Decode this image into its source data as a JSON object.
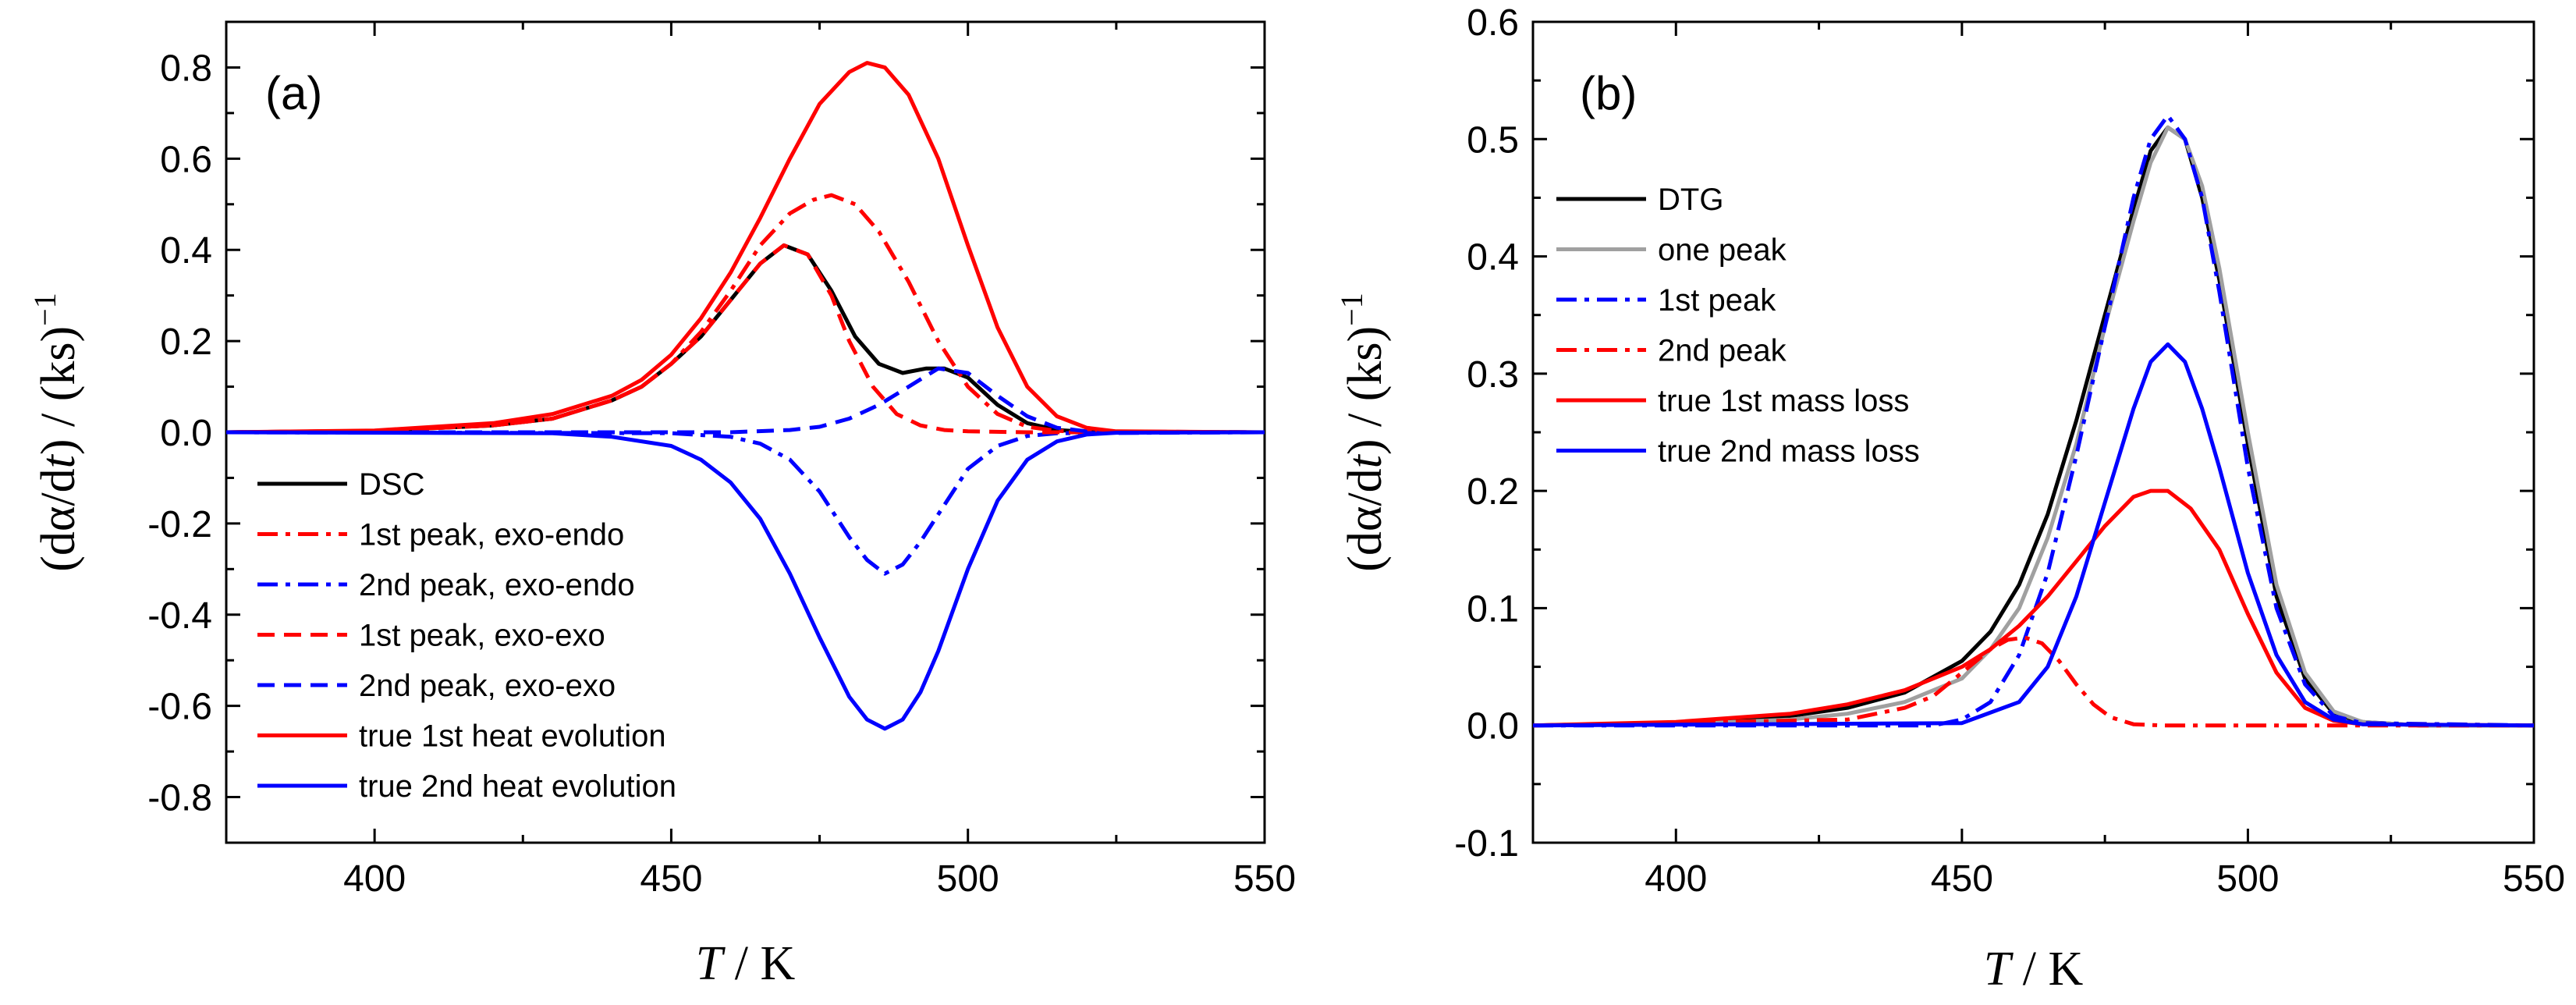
{
  "chart_data": [
    {
      "type": "line",
      "panel_label": "(a)",
      "xlabel": {
        "var": "T",
        "unit": " / K"
      },
      "ylabel": {
        "pre": "(dα/d",
        "var": "t",
        "post": ") / (ks)",
        "sup": "−1"
      },
      "xlim": [
        375,
        550
      ],
      "ylim": [
        -0.9,
        0.9
      ],
      "xticks": [
        400,
        450,
        500,
        550
      ],
      "xtick_labels": [
        "400",
        "450",
        "500",
        "550"
      ],
      "yticks": [
        -0.8,
        -0.6,
        -0.4,
        -0.2,
        0.0,
        0.2,
        0.4,
        0.6,
        0.8
      ],
      "ytick_labels": [
        "-0.8",
        "-0.6",
        "-0.4",
        "-0.2",
        "0.0",
        "0.2",
        "0.4",
        "0.6",
        "0.8"
      ],
      "legend_position": "lower-left",
      "series": [
        {
          "name": "DSC",
          "color": "#000000",
          "dash": "solid",
          "x": [
            375,
            400,
            420,
            430,
            440,
            445,
            450,
            455,
            460,
            465,
            469,
            473,
            477,
            481,
            485,
            489,
            493,
            496,
            500,
            505,
            510,
            515,
            520,
            550
          ],
          "y": [
            0,
            0.003,
            0.015,
            0.03,
            0.07,
            0.1,
            0.15,
            0.21,
            0.29,
            0.37,
            0.41,
            0.39,
            0.31,
            0.21,
            0.15,
            0.13,
            0.14,
            0.14,
            0.12,
            0.06,
            0.02,
            0.005,
            0.001,
            0
          ]
        },
        {
          "name": "1st peak, exo-endo",
          "color": "#ff0000",
          "dash": "dashdot",
          "x": [
            375,
            400,
            420,
            430,
            440,
            445,
            450,
            455,
            460,
            465,
            470,
            474,
            477,
            481,
            485,
            490,
            495,
            500,
            505,
            510,
            515,
            520,
            550
          ],
          "y": [
            0,
            0.003,
            0.015,
            0.03,
            0.07,
            0.1,
            0.15,
            0.22,
            0.31,
            0.41,
            0.48,
            0.51,
            0.52,
            0.5,
            0.44,
            0.33,
            0.2,
            0.1,
            0.04,
            0.012,
            0.003,
            0.001,
            0
          ]
        },
        {
          "name": "2nd peak, exo-endo",
          "color": "#0000ff",
          "dash": "dashdot",
          "x": [
            375,
            450,
            460,
            465,
            470,
            475,
            480,
            483,
            486,
            489,
            492,
            495,
            500,
            505,
            510,
            515,
            550
          ],
          "y": [
            0,
            -0.002,
            -0.01,
            -0.025,
            -0.06,
            -0.13,
            -0.23,
            -0.28,
            -0.31,
            -0.29,
            -0.24,
            -0.18,
            -0.08,
            -0.03,
            -0.008,
            -0.002,
            0
          ]
        },
        {
          "name": "1st peak, exo-exo",
          "color": "#ff0000",
          "dash": "dashed",
          "x": [
            375,
            400,
            420,
            430,
            440,
            445,
            450,
            455,
            460,
            465,
            469,
            473,
            477,
            480,
            484,
            488,
            492,
            496,
            500,
            510,
            550
          ],
          "y": [
            0,
            0.003,
            0.015,
            0.03,
            0.07,
            0.1,
            0.15,
            0.21,
            0.29,
            0.37,
            0.41,
            0.39,
            0.3,
            0.2,
            0.1,
            0.04,
            0.015,
            0.005,
            0.002,
            0,
            0
          ]
        },
        {
          "name": "2nd peak, exo-exo",
          "color": "#0000ff",
          "dash": "dashed",
          "x": [
            375,
            460,
            470,
            475,
            480,
            485,
            490,
            495,
            500,
            505,
            510,
            515,
            520,
            550
          ],
          "y": [
            0,
            0,
            0.005,
            0.012,
            0.03,
            0.06,
            0.1,
            0.14,
            0.13,
            0.08,
            0.035,
            0.01,
            0.002,
            0
          ]
        },
        {
          "name": "true 1st heat evolution",
          "color": "#ff0000",
          "dash": "solid",
          "x": [
            375,
            400,
            420,
            430,
            440,
            445,
            450,
            455,
            460,
            465,
            470,
            475,
            480,
            483,
            486,
            490,
            495,
            500,
            505,
            510,
            515,
            520,
            525,
            550
          ],
          "y": [
            0,
            0.004,
            0.02,
            0.04,
            0.08,
            0.115,
            0.17,
            0.25,
            0.35,
            0.47,
            0.6,
            0.72,
            0.79,
            0.81,
            0.8,
            0.74,
            0.6,
            0.41,
            0.23,
            0.1,
            0.035,
            0.01,
            0.002,
            0
          ]
        },
        {
          "name": "true 2nd heat evolution",
          "color": "#0000ff",
          "dash": "solid",
          "x": [
            375,
            430,
            440,
            450,
            455,
            460,
            465,
            470,
            475,
            480,
            483,
            486,
            489,
            492,
            495,
            500,
            505,
            510,
            515,
            520,
            525,
            550
          ],
          "y": [
            0,
            -0.002,
            -0.01,
            -0.03,
            -0.06,
            -0.11,
            -0.19,
            -0.31,
            -0.45,
            -0.58,
            -0.63,
            -0.65,
            -0.63,
            -0.57,
            -0.48,
            -0.3,
            -0.15,
            -0.06,
            -0.02,
            -0.005,
            -0.001,
            0
          ]
        }
      ]
    },
    {
      "type": "line",
      "panel_label": "(b)",
      "xlabel": {
        "var": "T",
        "unit": " / K"
      },
      "ylabel": {
        "pre": "(dα/d",
        "var": "t",
        "post": ") / (ks)",
        "sup": "−1"
      },
      "xlim": [
        375,
        550
      ],
      "ylim": [
        -0.1,
        0.6
      ],
      "xticks": [
        400,
        450,
        500,
        550
      ],
      "xtick_labels": [
        "400",
        "450",
        "500",
        "550"
      ],
      "yticks": [
        -0.1,
        0.0,
        0.1,
        0.2,
        0.3,
        0.4,
        0.5,
        0.6
      ],
      "ytick_labels": [
        "-0.1",
        "0.0",
        "0.1",
        "0.2",
        "0.3",
        "0.4",
        "0.5",
        "0.6"
      ],
      "legend_position": "upper-left",
      "series": [
        {
          "name": "DTG",
          "color": "#000000",
          "dash": "solid",
          "x": [
            375,
            400,
            420,
            430,
            440,
            450,
            455,
            460,
            465,
            470,
            475,
            480,
            483,
            486,
            489,
            492,
            495,
            500,
            505,
            510,
            515,
            520,
            530,
            550
          ],
          "y": [
            0,
            0.002,
            0.008,
            0.015,
            0.028,
            0.055,
            0.08,
            0.12,
            0.18,
            0.26,
            0.35,
            0.44,
            0.49,
            0.51,
            0.5,
            0.45,
            0.38,
            0.24,
            0.11,
            0.04,
            0.01,
            0.003,
            0,
            0
          ]
        },
        {
          "name": "one peak",
          "color": "#a0a0a0",
          "dash": "solid",
          "x": [
            375,
            400,
            420,
            430,
            440,
            450,
            455,
            460,
            465,
            470,
            475,
            480,
            483,
            486,
            489,
            492,
            495,
            500,
            505,
            510,
            515,
            520,
            530,
            550
          ],
          "y": [
            0,
            0.001,
            0.005,
            0.01,
            0.02,
            0.04,
            0.065,
            0.1,
            0.16,
            0.24,
            0.34,
            0.43,
            0.48,
            0.51,
            0.5,
            0.46,
            0.39,
            0.25,
            0.12,
            0.045,
            0.012,
            0.003,
            0,
            0
          ]
        },
        {
          "name": "1st peak",
          "color": "#0000ff",
          "dash": "dashdot",
          "x": [
            375,
            445,
            450,
            455,
            460,
            465,
            470,
            475,
            480,
            483,
            486,
            489,
            492,
            495,
            500,
            505,
            510,
            515,
            520,
            550
          ],
          "y": [
            0,
            0,
            0.005,
            0.02,
            0.06,
            0.13,
            0.23,
            0.34,
            0.45,
            0.5,
            0.52,
            0.5,
            0.45,
            0.37,
            0.22,
            0.1,
            0.035,
            0.008,
            0.002,
            0
          ]
        },
        {
          "name": "2nd peak",
          "color": "#ff0000",
          "dash": "dashdot",
          "x": [
            375,
            430,
            440,
            445,
            450,
            455,
            458,
            461,
            464,
            467,
            470,
            473,
            476,
            480,
            485,
            550
          ],
          "y": [
            0,
            0.005,
            0.015,
            0.025,
            0.045,
            0.065,
            0.073,
            0.075,
            0.07,
            0.055,
            0.035,
            0.018,
            0.007,
            0.001,
            0,
            0
          ]
        },
        {
          "name": "true 1st mass loss",
          "color": "#ff0000",
          "dash": "solid",
          "x": [
            375,
            400,
            420,
            430,
            440,
            450,
            455,
            460,
            465,
            470,
            475,
            480,
            483,
            486,
            490,
            495,
            500,
            505,
            510,
            515,
            520,
            550
          ],
          "y": [
            0,
            0.003,
            0.01,
            0.018,
            0.03,
            0.05,
            0.065,
            0.085,
            0.11,
            0.14,
            0.17,
            0.195,
            0.2,
            0.2,
            0.185,
            0.15,
            0.095,
            0.045,
            0.015,
            0.004,
            0.001,
            0
          ]
        },
        {
          "name": "true 2nd mass loss",
          "color": "#0000ff",
          "dash": "solid",
          "x": [
            375,
            450,
            460,
            465,
            470,
            475,
            480,
            483,
            486,
            489,
            492,
            495,
            500,
            505,
            510,
            515,
            520,
            550
          ],
          "y": [
            0,
            0.002,
            0.02,
            0.05,
            0.11,
            0.19,
            0.27,
            0.31,
            0.325,
            0.31,
            0.27,
            0.22,
            0.13,
            0.06,
            0.02,
            0.005,
            0.001,
            0
          ]
        }
      ]
    }
  ]
}
